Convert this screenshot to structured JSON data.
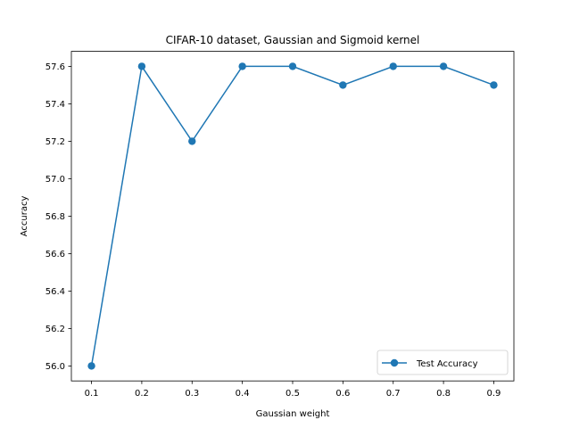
{
  "chart_data": {
    "type": "line",
    "title": "CIFAR-10 dataset, Gaussian and Sigmoid kernel",
    "xlabel": "Gaussian weight",
    "ylabel": "Accuracy",
    "xlim": [
      0.06,
      0.94
    ],
    "ylim": [
      55.92,
      57.68
    ],
    "xticks": [
      "0.1",
      "0.2",
      "0.3",
      "0.4",
      "0.5",
      "0.6",
      "0.7",
      "0.8",
      "0.9"
    ],
    "yticks": [
      "56.0",
      "56.2",
      "56.4",
      "56.6",
      "56.8",
      "57.0",
      "57.2",
      "57.4",
      "57.6"
    ],
    "grid": false,
    "legend_position": "lower-right",
    "series": [
      {
        "name": "Test Accuracy",
        "color": "#1f77b4",
        "marker": "circle",
        "x": [
          0.1,
          0.2,
          0.3,
          0.4,
          0.5,
          0.6,
          0.7,
          0.8,
          0.9
        ],
        "y": [
          56.0,
          57.6,
          57.2,
          57.6,
          57.6,
          57.5,
          57.6,
          57.6,
          57.5
        ]
      }
    ]
  }
}
